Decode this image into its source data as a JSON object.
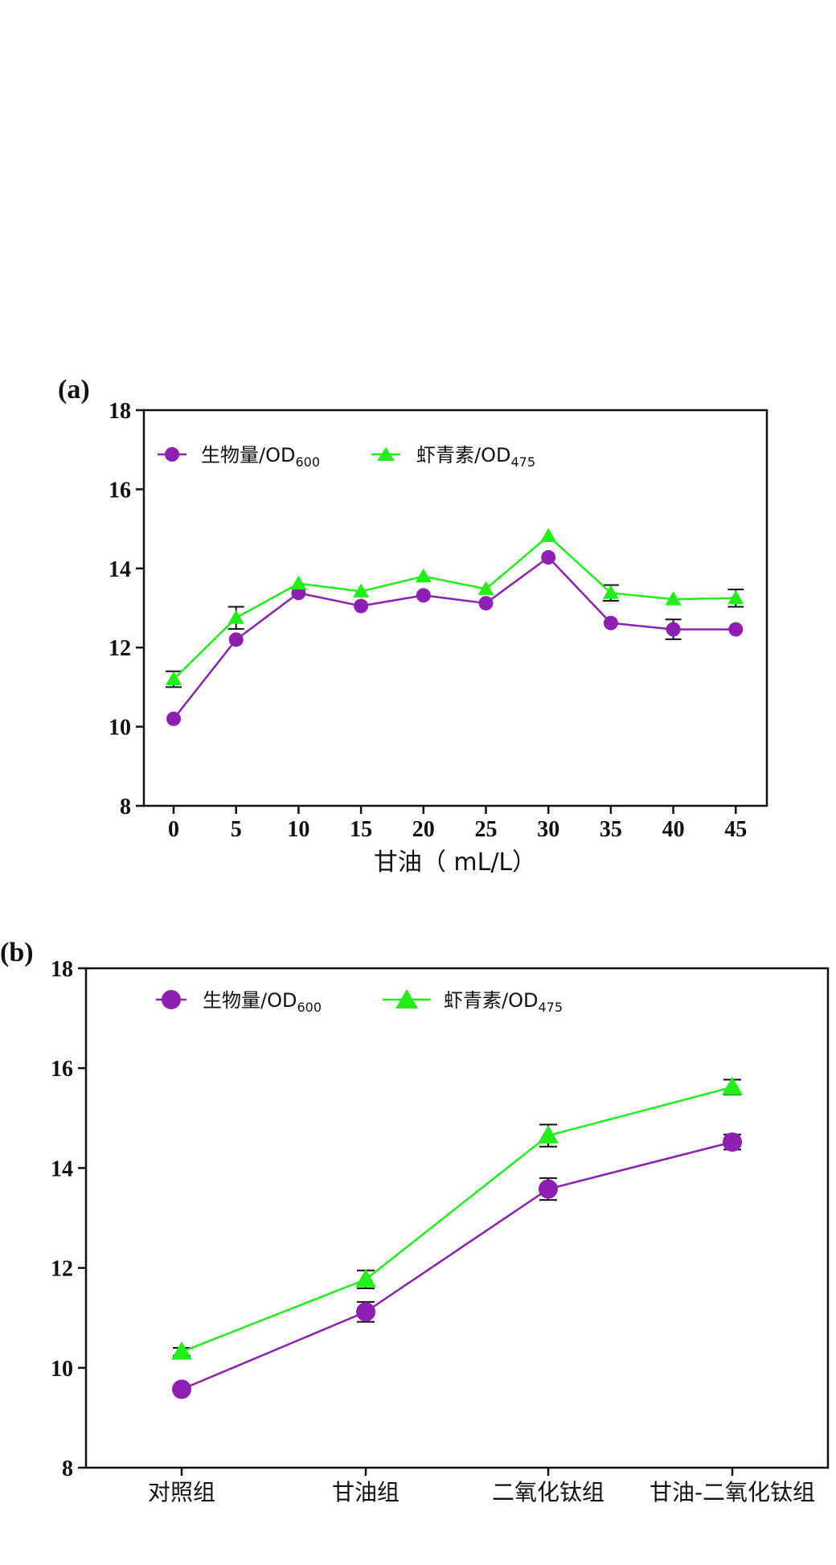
{
  "chart_data": [
    {
      "panel_label": "(a)",
      "type": "line",
      "x": [
        0,
        5,
        10,
        15,
        20,
        25,
        30,
        35,
        40,
        45
      ],
      "xlabel": "甘油（ mL/L）",
      "ylabel": "",
      "xlim": [
        -3.5,
        47.5
      ],
      "ylim": [
        8,
        18
      ],
      "yticks": [
        8,
        10,
        12,
        14,
        16,
        18
      ],
      "xticks": [
        0,
        5,
        10,
        15,
        20,
        25,
        30,
        35,
        40,
        45
      ],
      "legend": "top-left",
      "series": [
        {
          "name": "生物量/OD",
          "subscript": "600",
          "marker": "circle",
          "color": "#8e1fb3",
          "values": [
            10.2,
            12.2,
            13.38,
            13.05,
            13.32,
            13.12,
            14.28,
            12.62,
            12.46,
            12.46
          ],
          "errors": [
            0.05,
            0.05,
            0.05,
            0.05,
            0.05,
            0.05,
            0.05,
            0.05,
            0.25,
            0.05
          ]
        },
        {
          "name": "虾青素/OD",
          "subscript": "475",
          "marker": "triangle",
          "color": "#22ee1a",
          "values": [
            11.2,
            12.75,
            13.62,
            13.42,
            13.8,
            13.48,
            14.82,
            13.38,
            13.22,
            13.25
          ],
          "errors": [
            0.2,
            0.28,
            0.05,
            0.05,
            0.05,
            0.05,
            0.05,
            0.2,
            0.05,
            0.22
          ]
        }
      ]
    },
    {
      "panel_label": "(b)",
      "type": "line",
      "categories": [
        "对照组",
        "甘油组",
        "二氧化钛组",
        "甘油-二氧化钛组"
      ],
      "xlabel": "",
      "ylabel": "",
      "ylim": [
        8,
        18
      ],
      "yticks": [
        8,
        10,
        12,
        14,
        16,
        18
      ],
      "legend": "top-left",
      "series": [
        {
          "name": "生物量/OD",
          "subscript": "600",
          "marker": "circle",
          "color": "#8e1fb3",
          "values": [
            9.57,
            11.12,
            13.58,
            14.52
          ],
          "errors": [
            0.05,
            0.2,
            0.22,
            0.15
          ]
        },
        {
          "name": "虾青素/OD",
          "subscript": "475",
          "marker": "triangle",
          "color": "#22ee1a",
          "values": [
            10.32,
            11.77,
            14.65,
            15.62
          ],
          "errors": [
            0.08,
            0.18,
            0.22,
            0.15
          ]
        }
      ]
    }
  ]
}
